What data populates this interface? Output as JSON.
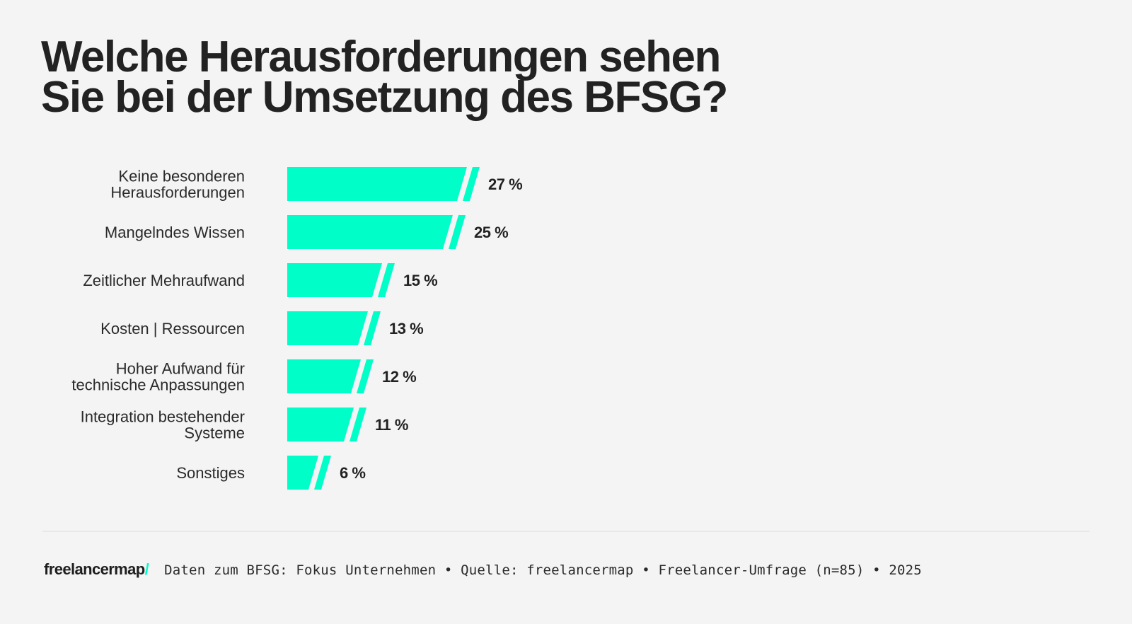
{
  "title": {
    "line1": "Welche Herausforderungen sehen",
    "line2": "Sie bei der Umsetzung des BFSG?"
  },
  "colors": {
    "bar": "#00ffc8",
    "text": "#222222",
    "background": "#f4f4f4"
  },
  "chart_data": {
    "type": "bar",
    "orientation": "horizontal",
    "title": "Welche Herausforderungen sehen Sie bei der Umsetzung des BFSG?",
    "xlabel": "",
    "ylabel": "",
    "unit": "%",
    "categories": [
      [
        "Keine besonderen",
        "Herausforderungen"
      ],
      [
        "Mangelndes Wissen"
      ],
      [
        "Zeitlicher Mehraufwand"
      ],
      [
        "Kosten | Ressourcen"
      ],
      [
        "Hoher Aufwand für",
        "technische Anpassungen"
      ],
      [
        "Integration bestehender",
        "Systeme"
      ],
      [
        "Sonstiges"
      ]
    ],
    "values": [
      27,
      25,
      15,
      13,
      12,
      11,
      6
    ],
    "value_labels": [
      "27 %",
      "25 %",
      "15 %",
      "13 %",
      "12 %",
      "11 %",
      "6 %"
    ],
    "grid": false,
    "legend": "none"
  },
  "footer": {
    "logo_text": "freelancermap",
    "logo_slash": "/",
    "source": "Daten zum BFSG: Fokus Unternehmen • Quelle: freelancermap • Freelancer-Umfrage (n=85) • 2025"
  }
}
